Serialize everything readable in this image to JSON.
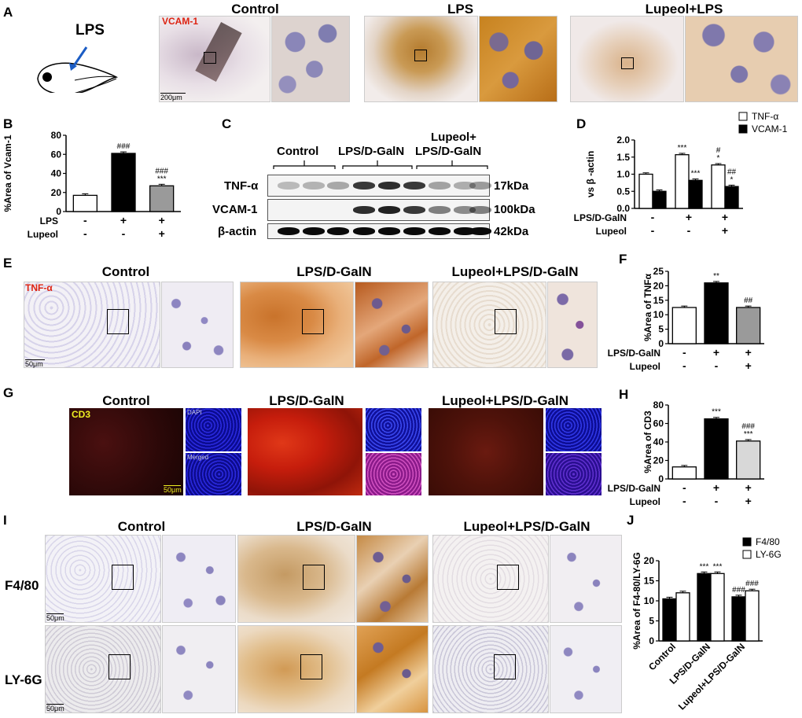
{
  "panel_letters": [
    "A",
    "B",
    "C",
    "D",
    "E",
    "F",
    "G",
    "H",
    "I",
    "J"
  ],
  "panelA": {
    "injection_label": "LPS",
    "stain": "VCAM-1",
    "scale": "200μm",
    "groups": [
      "Control",
      "LPS",
      "Lupeol+LPS"
    ]
  },
  "panelC": {
    "groups": [
      "Control",
      "LPS/D-GalN",
      "Lupeol+\nLPS/D-GalN"
    ],
    "group_line1": [
      "Control",
      "LPS/D-GalN",
      "Lupeol+"
    ],
    "group_line2": [
      "",
      "",
      "LPS/D-GalN"
    ],
    "rows": [
      {
        "name": "TNF-α",
        "kda": "17kDa"
      },
      {
        "name": "VCAM-1",
        "kda": "100kDa"
      },
      {
        "name": "β-actin",
        "kda": "42kDa"
      }
    ]
  },
  "panelE": {
    "stain": "TNF-α",
    "scale": "50μm",
    "groups": [
      "Control",
      "LPS/D-GalN",
      "Lupeol+LPS/D-GalN"
    ]
  },
  "panelG": {
    "stain": "CD3",
    "dapi": "DAPI",
    "merged": "Merged",
    "scale": "50μm",
    "groups": [
      "Control",
      "LPS/D-GalN",
      "Lupeol+LPS/D-GalN"
    ]
  },
  "panelI": {
    "rows": [
      "F4/80",
      "LY-6G"
    ],
    "scale": "50μm",
    "groups": [
      "Control",
      "LPS/D-GalN",
      "Lupeol+LPS/D-GalN"
    ]
  },
  "colors": {
    "brown": "#b8742a",
    "hema": "#8a82b8",
    "red": "#c01808",
    "blue": "#1a1ad0"
  },
  "chart_data": [
    {
      "id": "B",
      "type": "bar",
      "ylabel": "%Area of Vcam-1",
      "ylim": [
        0,
        80
      ],
      "yticks": [
        0,
        20,
        40,
        60,
        80
      ],
      "categories": [
        "",
        "",
        ""
      ],
      "values": [
        17,
        61,
        27
      ],
      "fills": [
        "#ffffff",
        "#000000",
        "#9a9a9a"
      ],
      "annotations": [
        "",
        "###",
        "###\n***"
      ],
      "treatment_rows": [
        {
          "label": "LPS",
          "signs": [
            "-",
            "+",
            "+"
          ]
        },
        {
          "label": "Lupeol",
          "signs": [
            "-",
            "-",
            "+"
          ]
        }
      ]
    },
    {
      "id": "D",
      "type": "bar",
      "ylabel": "vs β -actin",
      "ylim": [
        0,
        2.0
      ],
      "yticks": [
        0.0,
        0.5,
        1.0,
        1.5,
        2.0
      ],
      "categories": [
        "",
        "",
        ""
      ],
      "series": [
        {
          "name": "TNF-α",
          "values": [
            1.0,
            1.57,
            1.27
          ],
          "fill": "#ffffff",
          "annotations": [
            "",
            "***",
            "#\n*"
          ]
        },
        {
          "name": "VCAM-1",
          "values": [
            0.5,
            0.82,
            0.64
          ],
          "fill": "#000000",
          "annotations": [
            "",
            "***",
            "##\n*"
          ]
        }
      ],
      "treatment_rows": [
        {
          "label": "LPS/D-GalN",
          "signs": [
            "-",
            "+",
            "+"
          ]
        },
        {
          "label": "Lupeol",
          "signs": [
            "-",
            "-",
            "+"
          ]
        }
      ]
    },
    {
      "id": "F",
      "type": "bar",
      "ylabel": "%Area of TNFα",
      "ylim": [
        0,
        25
      ],
      "yticks": [
        0,
        5,
        10,
        15,
        20,
        25
      ],
      "categories": [
        "",
        "",
        ""
      ],
      "values": [
        12.5,
        21,
        12.5
      ],
      "fills": [
        "#ffffff",
        "#000000",
        "#9a9a9a"
      ],
      "annotations": [
        "",
        "**",
        "##"
      ],
      "treatment_rows": [
        {
          "label": "LPS/D-GalN",
          "signs": [
            "-",
            "+",
            "+"
          ]
        },
        {
          "label": "Lupeol",
          "signs": [
            "-",
            "-",
            "+"
          ]
        }
      ]
    },
    {
      "id": "H",
      "type": "bar",
      "ylabel": "%Area of CD3",
      "ylim": [
        0,
        80
      ],
      "yticks": [
        0,
        20,
        40,
        60,
        80
      ],
      "categories": [
        "",
        "",
        ""
      ],
      "values": [
        13,
        65,
        41
      ],
      "fills": [
        "#ffffff",
        "#000000",
        "#d8d8d8"
      ],
      "annotations": [
        "",
        "***",
        "###\n***"
      ],
      "treatment_rows": [
        {
          "label": "LPS/D-GalN",
          "signs": [
            "-",
            "+",
            "+"
          ]
        },
        {
          "label": "Lupeol",
          "signs": [
            "-",
            "-",
            "+"
          ]
        }
      ]
    },
    {
      "id": "J",
      "type": "bar",
      "ylabel": "%Area of F4-80/LY-6G",
      "ylim": [
        0,
        20
      ],
      "yticks": [
        0,
        5,
        10,
        15,
        20
      ],
      "categories": [
        "Control",
        "LPS/D-GalN",
        "Lupeol+LPS/D-GalN"
      ],
      "series": [
        {
          "name": "F4/80",
          "values": [
            10.5,
            16.8,
            11
          ],
          "fill": "#000000",
          "annotations": [
            "",
            "***",
            "###"
          ]
        },
        {
          "name": "LY-6G",
          "values": [
            12,
            16.8,
            12.5
          ],
          "fill": "#ffffff",
          "annotations": [
            "",
            "***",
            "###"
          ]
        }
      ]
    }
  ]
}
